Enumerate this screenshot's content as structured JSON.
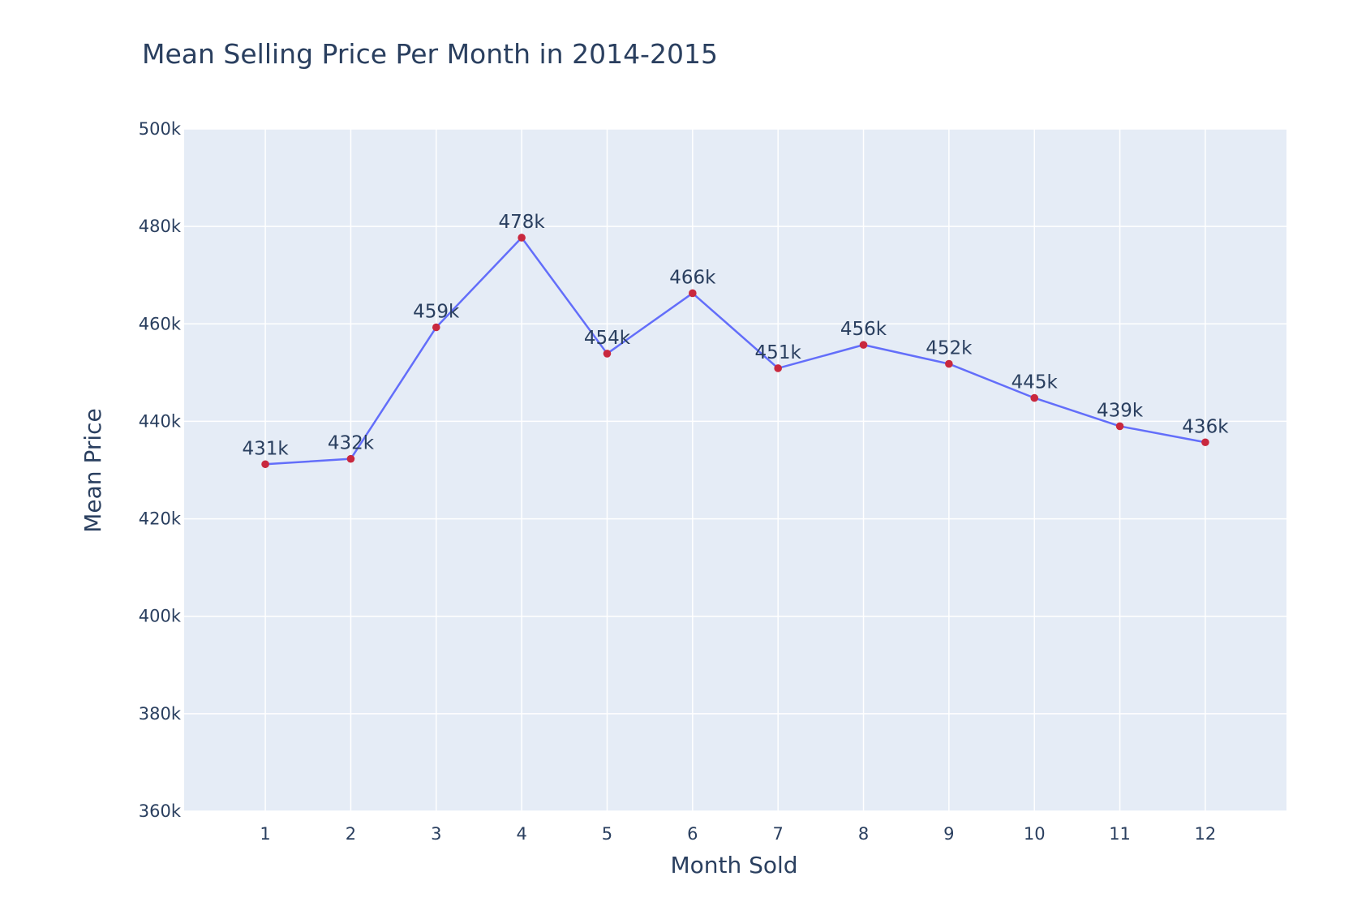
{
  "chart_data": {
    "type": "line",
    "title": "Mean Selling Price Per Month in 2014-2015",
    "xlabel": "Month Sold",
    "ylabel": "Mean Price",
    "x": [
      1,
      2,
      3,
      4,
      5,
      6,
      7,
      8,
      9,
      10,
      11,
      12
    ],
    "x_tick_labels": [
      "1",
      "2",
      "3",
      "4",
      "5",
      "6",
      "7",
      "8",
      "9",
      "10",
      "11",
      "12"
    ],
    "xlim": [
      0.05,
      12.95
    ],
    "ylim": [
      360000,
      500000
    ],
    "y_ticks": [
      360000,
      380000,
      400000,
      420000,
      440000,
      460000,
      480000,
      500000
    ],
    "y_tick_labels": [
      "360k",
      "380k",
      "400k",
      "420k",
      "440k",
      "460k",
      "480k",
      "500k"
    ],
    "series": [
      {
        "values": [
          431200,
          432300,
          459300,
          477700,
          453900,
          466300,
          450900,
          455700,
          451800,
          444800,
          439000,
          435700
        ],
        "labels": [
          "431k",
          "432k",
          "459k",
          "478k",
          "454k",
          "466k",
          "451k",
          "456k",
          "452k",
          "445k",
          "439k",
          "436k"
        ],
        "line_color": "#636efa",
        "marker_color": "#c9283e"
      }
    ],
    "plot_background": "#e5ecf6",
    "grid": true,
    "legend": false
  }
}
